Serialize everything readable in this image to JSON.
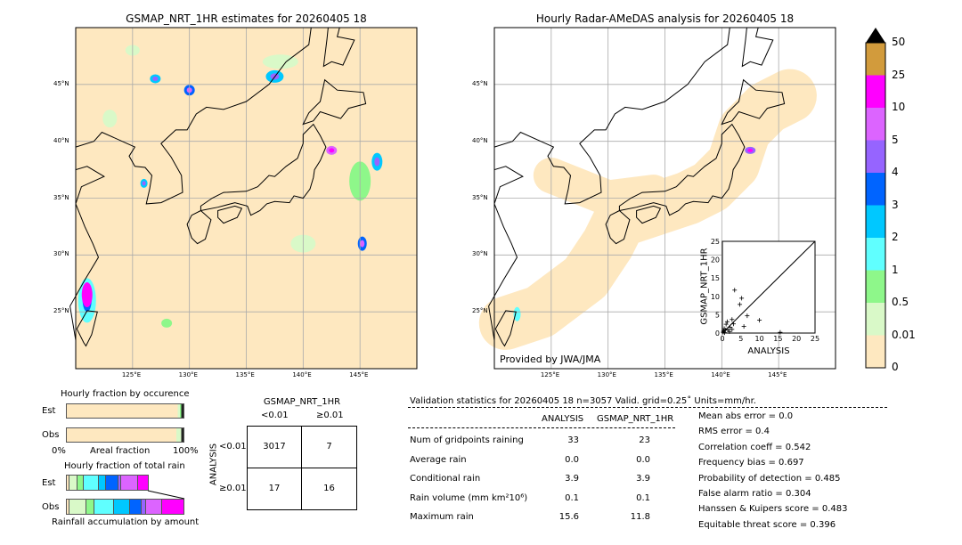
{
  "left_map": {
    "title": "GSMAP_NRT_1HR estimates for 20260405 18"
  },
  "right_map": {
    "title": "Hourly Radar-AMeDAS analysis for 20260405 18",
    "credit": "Provided by JWA/JMA"
  },
  "map_axes": {
    "lon_ticks": [
      "125°E",
      "130°E",
      "135°E",
      "140°E",
      "145°E"
    ],
    "lon_values": [
      125,
      130,
      135,
      140,
      145
    ],
    "lat_ticks": [
      "45°N",
      "40°N",
      "35°N",
      "30°N",
      "25°N"
    ],
    "lat_values": [
      45,
      40,
      35,
      30,
      25
    ],
    "lon_range": [
      120,
      150
    ],
    "lat_range": [
      20,
      50
    ]
  },
  "colorbar": {
    "labels": [
      "0",
      "0.01",
      "0.5",
      "1",
      "2",
      "3",
      "4",
      "5",
      "10",
      "25",
      "50"
    ],
    "colors": [
      "#fee8c0",
      "#d9f9c8",
      "#8ef78a",
      "#60ffff",
      "#00c8ff",
      "#0064ff",
      "#9664ff",
      "#dc64ff",
      "#ff00ff",
      "#d29b3c"
    ],
    "extend_color": "#000000"
  },
  "chart_data": {
    "type": "scatter",
    "xlabel": "ANALYSIS",
    "ylabel": "GSMAP_NRT_1HR",
    "xlim": [
      0,
      25
    ],
    "ylim": [
      0,
      25
    ],
    "ticks": [
      "0",
      "5",
      "10",
      "15",
      "20",
      "25"
    ],
    "points": [
      [
        3.3,
        11.7
      ],
      [
        5.2,
        9.5
      ],
      [
        4.7,
        7.8
      ],
      [
        6.7,
        4.7
      ],
      [
        10,
        3.5
      ],
      [
        5.8,
        1.8
      ],
      [
        15.6,
        0.2
      ],
      [
        2.6,
        3.7
      ],
      [
        1.3,
        3.1
      ],
      [
        1.0,
        2.4
      ],
      [
        2.1,
        1.6
      ],
      [
        2.6,
        1.0
      ],
      [
        3.0,
        2.5
      ],
      [
        0.5,
        1.2
      ],
      [
        0.3,
        0.5
      ],
      [
        0.8,
        0.8
      ],
      [
        1.5,
        0.9
      ],
      [
        0.2,
        0.2
      ],
      [
        0.6,
        0.1
      ],
      [
        1.9,
        0.4
      ]
    ]
  },
  "occurrence": {
    "title": "Hourly fraction by occurence",
    "est_label": "Est",
    "obs_label": "Obs",
    "xlabel": "Areal fraction",
    "x0": "0%",
    "x1": "100%"
  },
  "total_rain": {
    "title": "Hourly fraction of total rain",
    "est_label": "Est",
    "obs_label": "Obs",
    "xlabel": "Rainfall accumulation by amount"
  },
  "contingency": {
    "col_title": "GSMAP_NRT_1HR",
    "col_labels": [
      "<0.01",
      "≥0.01"
    ],
    "row_title": "ANALYSIS",
    "row_labels": [
      "<0.01",
      "≥0.01"
    ],
    "cells": [
      [
        "3017",
        "7"
      ],
      [
        "17",
        "16"
      ]
    ]
  },
  "stats": {
    "header": "Validation statistics for 20260405 18  n=3057 Valid. grid=0.25˚ Units=mm/hr.",
    "col_headers": [
      "ANALYSIS",
      "GSMAP_NRT_1HR"
    ],
    "rows": [
      {
        "label": "Num of gridpoints raining",
        "a": "33",
        "g": "23"
      },
      {
        "label": "Average rain",
        "a": "0.0",
        "g": "0.0"
      },
      {
        "label": "Conditional rain",
        "a": "3.9",
        "g": "3.9"
      },
      {
        "label": "Rain volume (mm km²10⁶)",
        "a": "0.1",
        "g": "0.1"
      },
      {
        "label": "Maximum rain",
        "a": "15.6",
        "g": "11.8"
      }
    ],
    "scores": [
      "Mean abs error =    0.0",
      "RMS error =    0.4",
      "Correlation coeff =  0.542",
      "Frequency bias =  0.697",
      "Probability of detection =  0.485",
      "False alarm ratio =  0.304",
      "Hanssen & Kuipers score =  0.483",
      "Equitable threat score =  0.396"
    ]
  }
}
